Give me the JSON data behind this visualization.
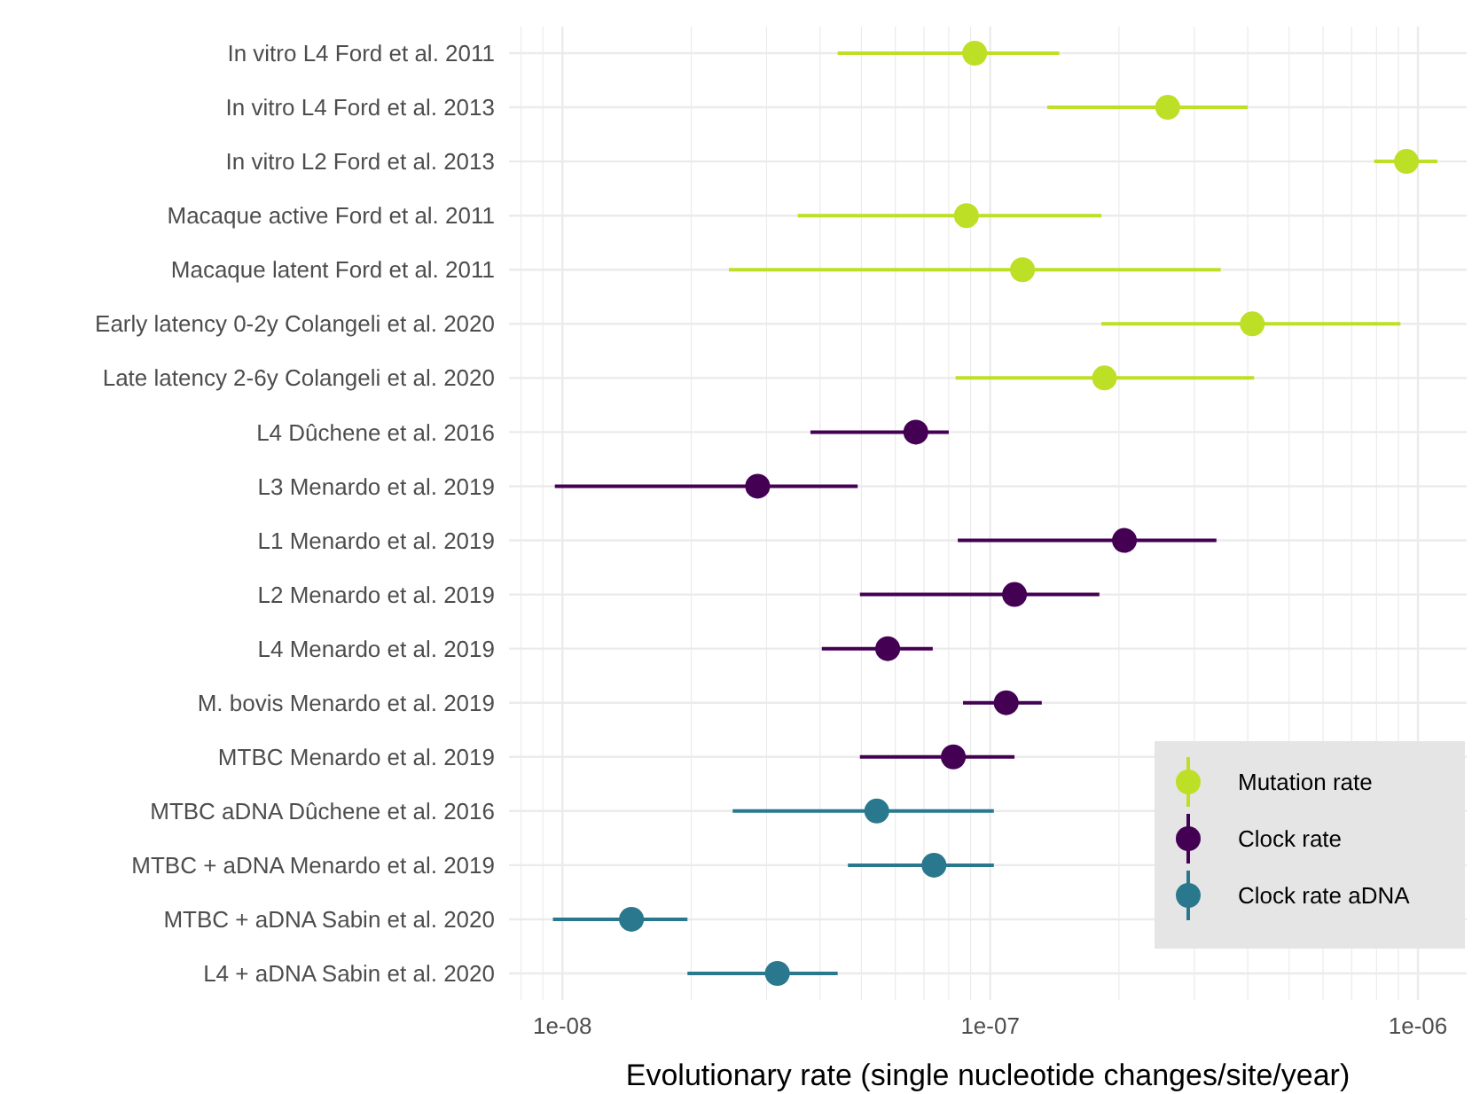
{
  "chart_data": {
    "type": "scatter",
    "orientation": "horizontal",
    "log": "x",
    "grid": true,
    "legend": "bottom right",
    "marker": "circle",
    "xlabel": "Evolutionary rate (single nucleotide changes/site/year)",
    "xlim": [
      7.5e-09,
      1.3e-06
    ],
    "xticks": [
      {
        "value": 8e-09,
        "label": null
      },
      {
        "value": 9e-09,
        "label": null
      },
      {
        "value": 1e-08,
        "label": "1e-08"
      },
      {
        "value": 2e-08,
        "label": null
      },
      {
        "value": 3e-08,
        "label": null
      },
      {
        "value": 4e-08,
        "label": null
      },
      {
        "value": 5e-08,
        "label": null
      },
      {
        "value": 6e-08,
        "label": null
      },
      {
        "value": 7e-08,
        "label": null
      },
      {
        "value": 8e-08,
        "label": null
      },
      {
        "value": 9e-08,
        "label": null
      },
      {
        "value": 1e-07,
        "label": "1e-07"
      },
      {
        "value": 2e-07,
        "label": null
      },
      {
        "value": 3e-07,
        "label": null
      },
      {
        "value": 4e-07,
        "label": null
      },
      {
        "value": 5e-07,
        "label": null
      },
      {
        "value": 6e-07,
        "label": null
      },
      {
        "value": 7e-07,
        "label": null
      },
      {
        "value": 8e-07,
        "label": null
      },
      {
        "value": 9e-07,
        "label": null
      },
      {
        "value": 1e-06,
        "label": "1e-06"
      }
    ],
    "categories": [
      "In vitro L4 Ford et al. 2011",
      "In vitro L4 Ford et al. 2013",
      "In vitro L2 Ford et al. 2013",
      "Macaque active Ford et al. 2011",
      "Macaque latent Ford et al. 2011",
      "Early latency 0-2y Colangeli et al. 2020",
      "Late latency 2-6y Colangeli et al. 2020",
      "L4 Dûchene et al. 2016",
      "L3 Menardo et al. 2019",
      "L1 Menardo et al. 2019",
      "L2 Menardo et al. 2019",
      "L4 Menardo et al. 2019",
      "M. bovis Menardo et al. 2019",
      "MTBC Menardo et al. 2019",
      "MTBC aDNA Dûchene et al. 2016",
      "MTBC + aDNA Menardo et al. 2019",
      "MTBC + aDNA Sabin et al. 2020",
      "L4 + aDNA Sabin et al. 2020"
    ],
    "series": [
      {
        "name": "Mutation rate",
        "color": "#bddf26",
        "values": [
          9.2e-08,
          2.6e-07,
          9.4e-07,
          8.8e-08,
          1.19e-07,
          4.1e-07,
          1.85e-07,
          null,
          null,
          null,
          null,
          null,
          null,
          null,
          null,
          null,
          null,
          null
        ],
        "errors": [
          [
            4.4e-08,
            1.45e-07
          ],
          [
            1.36e-07,
            4e-07
          ],
          [
            7.9e-07,
            1.11e-06
          ],
          [
            3.55e-08,
            1.82e-07
          ],
          [
            2.45e-08,
            3.46e-07
          ],
          [
            1.82e-07,
            9.1e-07
          ],
          [
            8.3e-08,
            4.14e-07
          ],
          null,
          null,
          null,
          null,
          null,
          null,
          null,
          null,
          null,
          null,
          null
        ]
      },
      {
        "name": "Clock rate",
        "color": "#440154",
        "values": [
          null,
          null,
          null,
          null,
          null,
          null,
          null,
          6.7e-08,
          2.86e-08,
          2.06e-07,
          1.14e-07,
          5.76e-08,
          1.09e-07,
          8.2e-08,
          null,
          null,
          null,
          null
        ],
        "errors": [
          null,
          null,
          null,
          null,
          null,
          null,
          null,
          [
            3.8e-08,
            8e-08
          ],
          [
            9.6e-09,
            4.9e-08
          ],
          [
            8.4e-08,
            3.38e-07
          ],
          [
            4.96e-08,
            1.8e-07
          ],
          [
            4.04e-08,
            7.34e-08
          ],
          [
            8.64e-08,
            1.32e-07
          ],
          [
            4.96e-08,
            1.14e-07
          ],
          null,
          null,
          null,
          null
        ]
      },
      {
        "name": "Clock rate aDNA",
        "color": "#2a788e",
        "values": [
          null,
          null,
          null,
          null,
          null,
          null,
          null,
          null,
          null,
          null,
          null,
          null,
          null,
          null,
          5.43e-08,
          7.39e-08,
          1.45e-08,
          3.18e-08
        ],
        "errors": [
          null,
          null,
          null,
          null,
          null,
          null,
          null,
          null,
          null,
          null,
          null,
          null,
          null,
          null,
          [
            2.5e-08,
            1.02e-07
          ],
          [
            4.65e-08,
            1.02e-07
          ],
          [
            9.5e-09,
            1.96e-08
          ],
          [
            1.96e-08,
            4.4e-08
          ]
        ]
      }
    ]
  }
}
